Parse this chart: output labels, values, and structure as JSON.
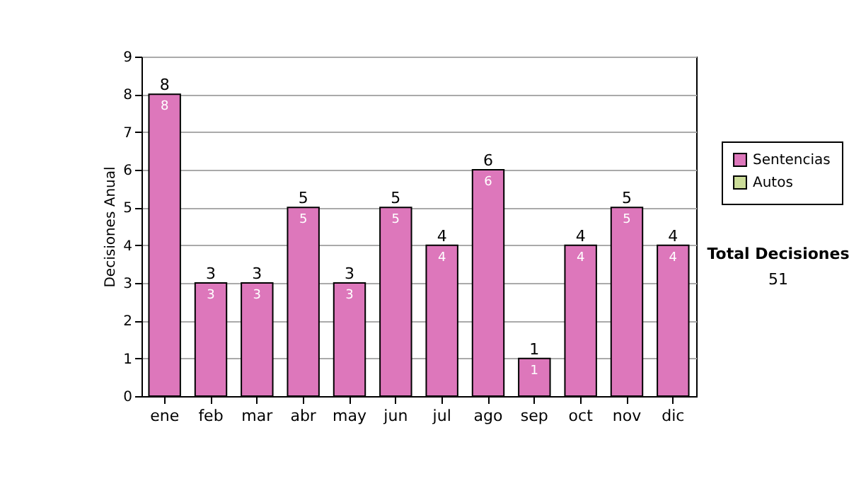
{
  "chart_data": {
    "type": "bar",
    "ylabel": "Decisiones Anual",
    "categories": [
      "ene",
      "feb",
      "mar",
      "abr",
      "may",
      "jun",
      "jul",
      "ago",
      "sep",
      "oct",
      "nov",
      "dic"
    ],
    "series": [
      {
        "name": "Sentencias",
        "color": "#dd77bb",
        "values": [
          8,
          3,
          3,
          5,
          3,
          5,
          4,
          6,
          1,
          4,
          5,
          4
        ]
      },
      {
        "name": "Autos",
        "color": "#ccdd99",
        "values": [
          null,
          null,
          null,
          null,
          null,
          null,
          null,
          null,
          null,
          null,
          null,
          null
        ]
      }
    ],
    "stacked": true,
    "data_labels": true,
    "totals": [
      "8",
      "3",
      "3",
      "5",
      "3",
      "5",
      "4",
      "6",
      "1",
      "4",
      "5",
      "4"
    ],
    "ylim": [
      0,
      9
    ],
    "yticks": [
      0,
      1,
      2,
      3,
      4,
      5,
      6,
      7,
      8,
      9
    ],
    "grid": "y",
    "legend": "right",
    "annotations": [
      "Total Decisiones",
      "51"
    ]
  }
}
